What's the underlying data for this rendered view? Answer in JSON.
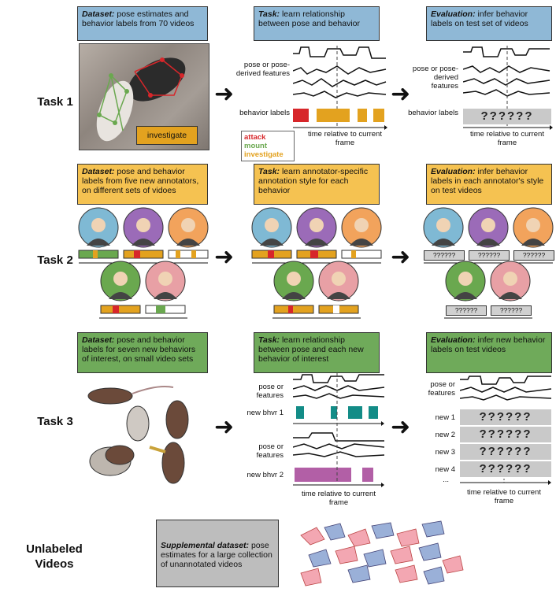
{
  "tasks": [
    {
      "label": "Task 1"
    },
    {
      "label": "Task 2"
    },
    {
      "label": "Task 3"
    },
    {
      "label": "Unlabeled Videos"
    }
  ],
  "task1": {
    "dataset": {
      "head": "Dataset:",
      "text": "pose estimates and behavior labels from 70 videos"
    },
    "task": {
      "head": "Task:",
      "text": "learn relationship between pose and behavior"
    },
    "evaluation": {
      "head": "Evaluation:",
      "text": "infer behavior labels on test set of videos"
    },
    "photo_label": "investigate",
    "pose_label": "pose or pose-derived features",
    "behavior_label": "behavior labels",
    "time_label": "time relative to current frame",
    "legend": [
      {
        "name": "attack",
        "color": "#d7262a"
      },
      {
        "name": "mount",
        "color": "#6aa84f"
      },
      {
        "name": "investigate",
        "color": "#e3a21f"
      }
    ],
    "eval_pose_label": "pose or pose-derived features",
    "eval_behavior_label": "behavior labels",
    "eval_qmarks": "??????",
    "eval_time_label": "time relative to current frame"
  },
  "task2": {
    "dataset": {
      "head": "Dataset:",
      "text": "pose and behavior labels from five new annotators, on different sets of vidoes"
    },
    "task": {
      "head": "Task:",
      "text": "learn annotator-specific annotation style for each behavior"
    },
    "evaluation": {
      "head": "Evaluation:",
      "text": "infer behavior labels in each annotator's style on test videos"
    },
    "qmarks": "??????"
  },
  "task3": {
    "dataset": {
      "head": "Dataset:",
      "text": "pose and behavior labels for seven new behaviors of interest, on small video sets"
    },
    "task": {
      "head": "Task:",
      "text": "learn relationship between pose and each new behavior of interest"
    },
    "evaluation": {
      "head": "Evaluation:",
      "text": "infer new behavior labels on test videos"
    },
    "pose_label": "pose or features",
    "new1": "new bhvr 1",
    "new2": "new bhvr 2",
    "time_label": "time relative to current frame",
    "eval_pose_label": "pose or features",
    "eval_rows": [
      "new 1",
      "new 2",
      "new 3",
      "new 4",
      "..."
    ],
    "qmarks": "??????",
    "eval_time_label": "time relative to current frame"
  },
  "unlabeled": {
    "head": "Supplemental dataset:",
    "text": "pose estimates for a large collection of unannotated videos"
  },
  "colors": {
    "attack": "#d7262a",
    "mount": "#6aa84f",
    "investigate": "#e3a21f",
    "teal": "#138c87",
    "purple": "#b25fa6"
  }
}
